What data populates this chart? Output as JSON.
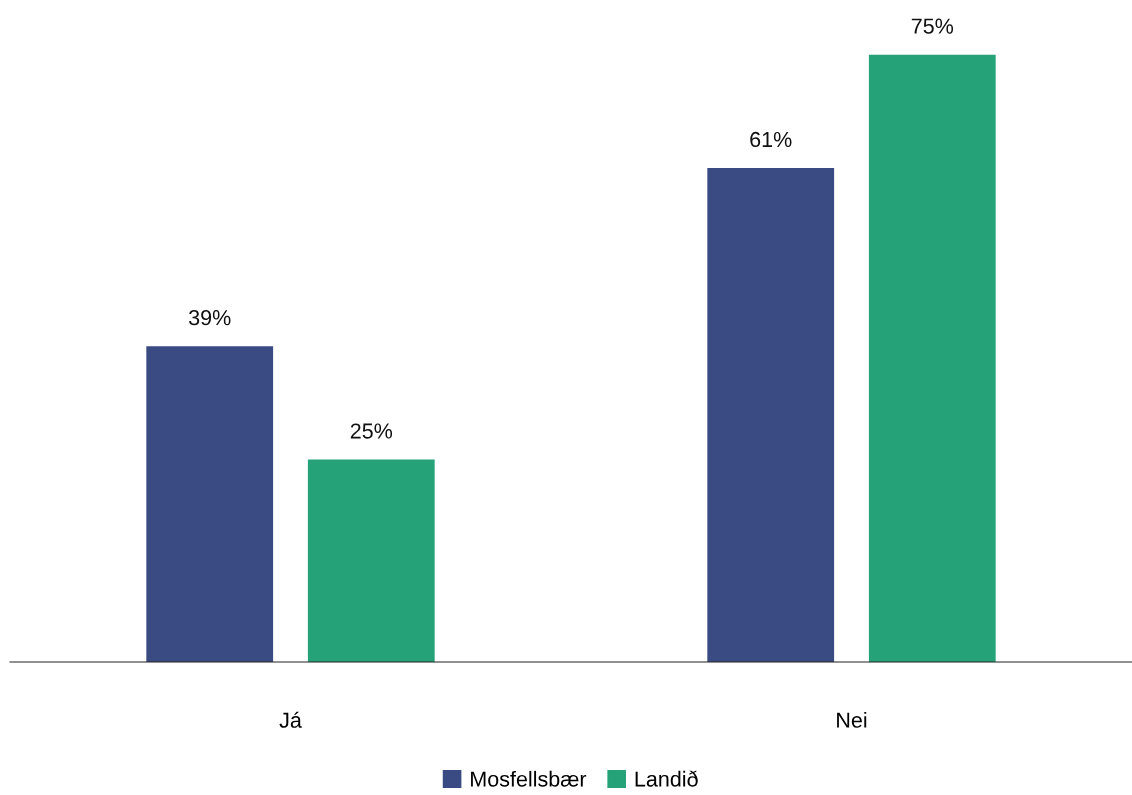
{
  "chart_data": {
    "type": "bar",
    "categories": [
      "Já",
      "Nei"
    ],
    "series": [
      {
        "name": "Mosfellsbær",
        "color": "#3a4a82",
        "values": [
          39,
          61
        ],
        "value_labels": [
          "39%",
          "61%"
        ]
      },
      {
        "name": "Landið",
        "color": "#25a278",
        "values": [
          25,
          75
        ],
        "value_labels": [
          "25%",
          "75%"
        ]
      }
    ],
    "legend": "bottom",
    "grid": false
  }
}
